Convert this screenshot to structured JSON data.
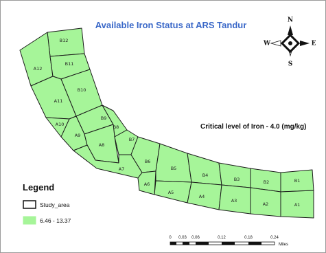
{
  "map": {
    "title": "Available Iron Status at ARS Tandur",
    "critical_note": "Critical level of Iron - 4.0  (mg/kg)",
    "plot_fill": "#a6f599",
    "title_color": "#3a68c8",
    "plots": [
      "B12",
      "A12",
      "B11",
      "B10",
      "A11",
      "A10",
      "B9",
      "A9",
      "B8",
      "A8",
      "B7",
      "A7",
      "B6",
      "A6",
      "B5",
      "A5",
      "B4",
      "A4",
      "B3",
      "A3",
      "B2",
      "A2",
      "B1",
      "A1"
    ]
  },
  "legend": {
    "title": "Legend",
    "items": [
      {
        "label": "Study_area",
        "swatch": "#ffffff"
      },
      {
        "label": "6.46 - 13.37",
        "swatch": "#a6f599"
      }
    ]
  },
  "compass": {
    "n": "N",
    "s": "S",
    "e": "E",
    "w": "W"
  },
  "scale": {
    "ticks": [
      "0",
      "0.03",
      "0.06",
      "0.12",
      "0.18",
      "0.24"
    ],
    "unit": "Miles"
  }
}
